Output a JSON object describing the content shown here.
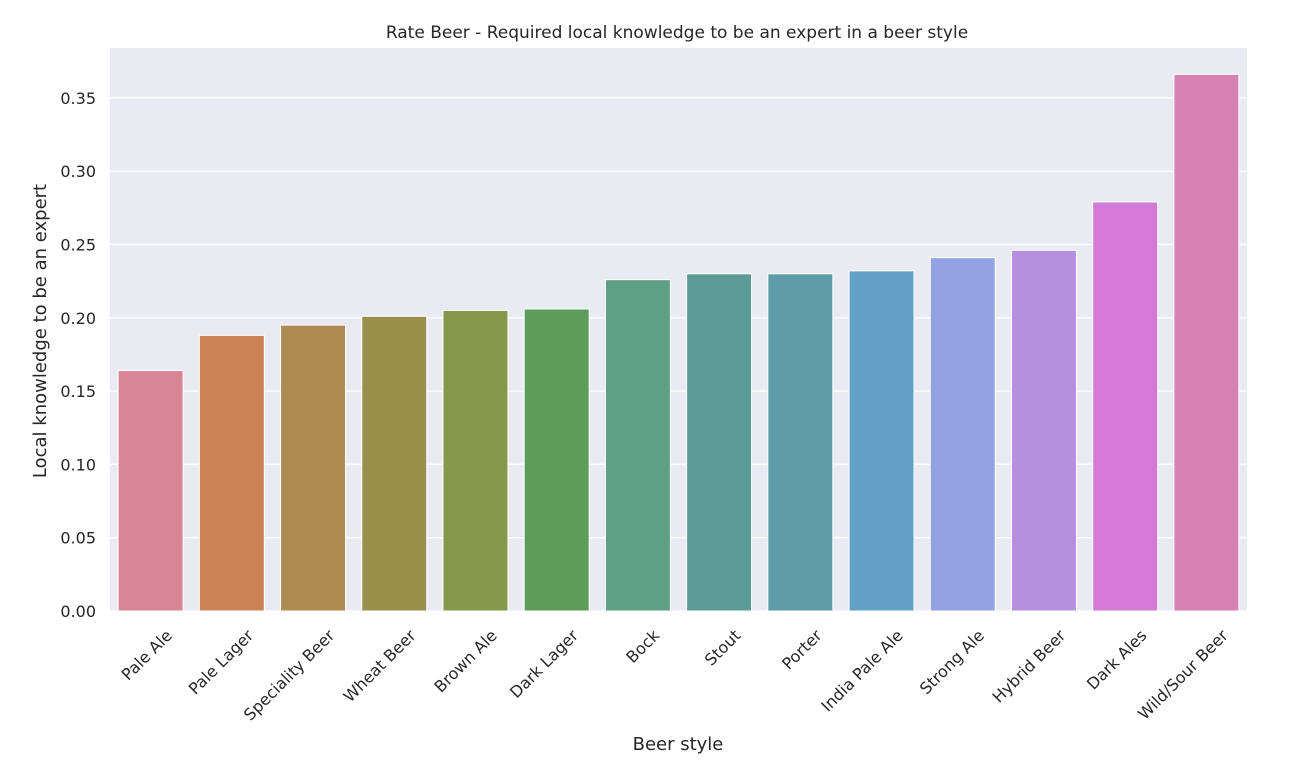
{
  "chart_data": {
    "type": "bar",
    "title": "Rate Beer - Required local knowledge to be an expert in a beer style",
    "xlabel": "Beer style",
    "ylabel": "Local knowledge to be an expert",
    "categories": [
      "Pale Ale",
      "Pale Lager",
      "Speciality Beer",
      "Wheat Beer",
      "Brown Ale",
      "Dark Lager",
      "Bock",
      "Stout",
      "Porter",
      "India Pale Ale",
      "Strong Ale",
      "Hybrid Beer",
      "Dark Ales",
      "Wild/Sour Beer"
    ],
    "values": [
      0.164,
      0.188,
      0.195,
      0.201,
      0.205,
      0.206,
      0.226,
      0.23,
      0.23,
      0.232,
      0.241,
      0.246,
      0.279,
      0.366
    ],
    "colors": [
      "#d98494",
      "#cc8254",
      "#ad8b51",
      "#9a8f4a",
      "#84994c",
      "#5a9e5a",
      "#5da085",
      "#5c9c94",
      "#5e9ca7",
      "#63a0c6",
      "#92a2e2",
      "#b78fe0",
      "#d37ad7",
      "#d782b4"
    ],
    "yticks": [
      "0.00",
      "0.05",
      "0.10",
      "0.15",
      "0.20",
      "0.25",
      "0.30",
      "0.35"
    ],
    "ylim": [
      0,
      0.384
    ],
    "grid": true,
    "background": "#eaeaf2"
  }
}
